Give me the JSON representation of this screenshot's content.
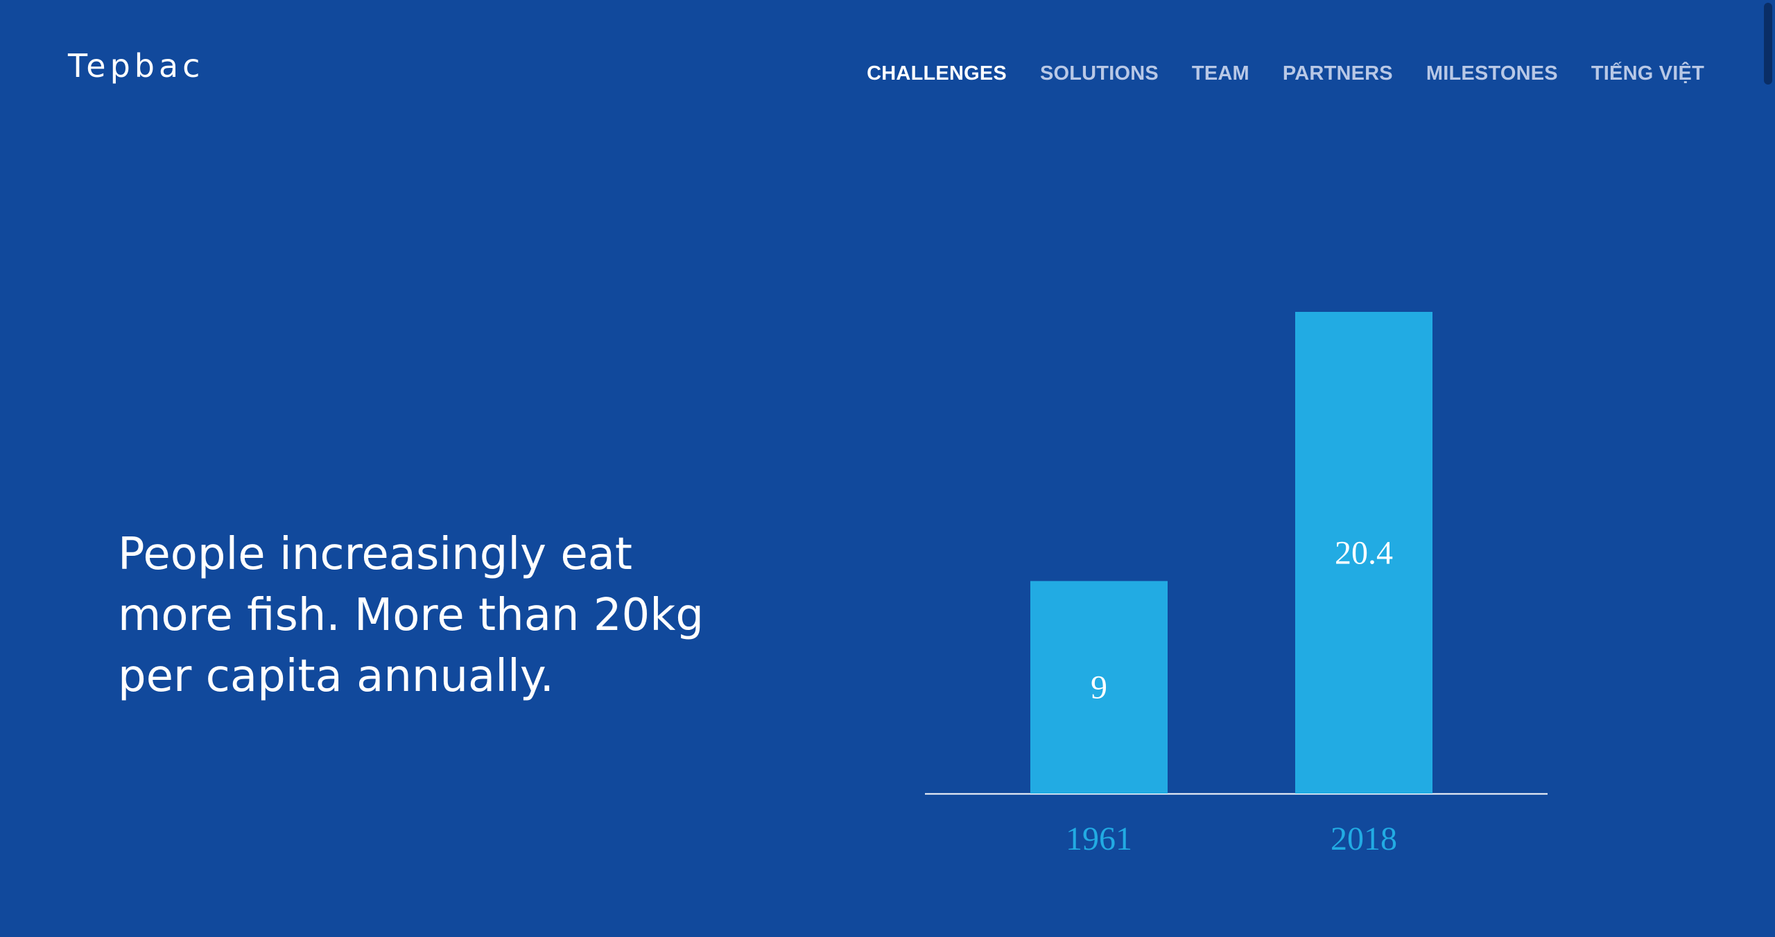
{
  "logo": {
    "text": "Tepbac"
  },
  "nav": {
    "items": [
      {
        "label": "CHALLENGES",
        "active": true
      },
      {
        "label": "SOLUTIONS",
        "active": false
      },
      {
        "label": "TEAM",
        "active": false
      },
      {
        "label": "PARTNERS",
        "active": false
      },
      {
        "label": "MILESTONES",
        "active": false
      },
      {
        "label": "TIẾNG VIỆT",
        "active": false
      }
    ]
  },
  "hero": {
    "headline": "People increasingly eat more fish. More than 20kg per capita annually."
  },
  "colors": {
    "background": "#11499c",
    "bar": "#22abe3",
    "nav_inactive": "#b8c8e6",
    "text": "#ffffff"
  },
  "chart_data": {
    "type": "bar",
    "categories": [
      "1961",
      "2018"
    ],
    "values": [
      9,
      20.4
    ],
    "title": "",
    "xlabel": "",
    "ylabel": "",
    "ylim": [
      0,
      20.4
    ],
    "grid": false
  }
}
